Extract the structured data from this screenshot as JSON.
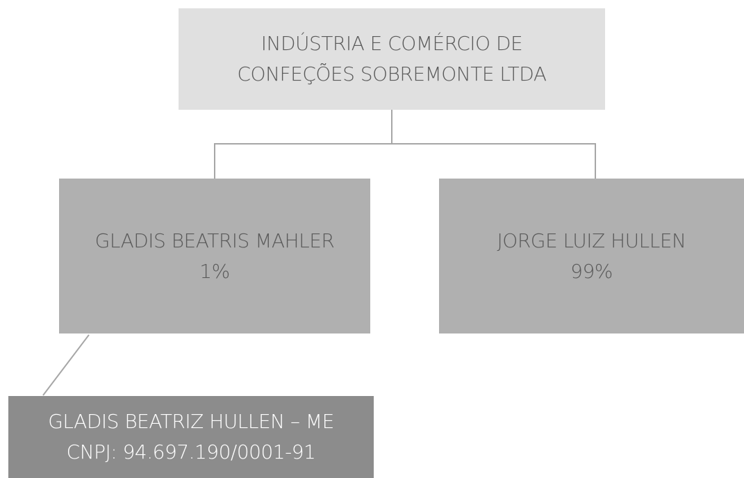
{
  "nodes": [
    {
      "lines": [
        "INDÚSTRIA E COMÉRCIO DE",
        "CONFEÇÕES SOBREMONTE LTDA"
      ]
    },
    {
      "lines": [
        "GLADIS BEATRIS MAHLER",
        "1%"
      ]
    },
    {
      "lines": [
        "JORGE LUIZ HULLEN",
        "99%"
      ]
    },
    {
      "lines": [
        "GLADIS BEATRIZ HULLEN – ME",
        "CNPJ: 94.697.190/0001-91"
      ]
    }
  ]
}
